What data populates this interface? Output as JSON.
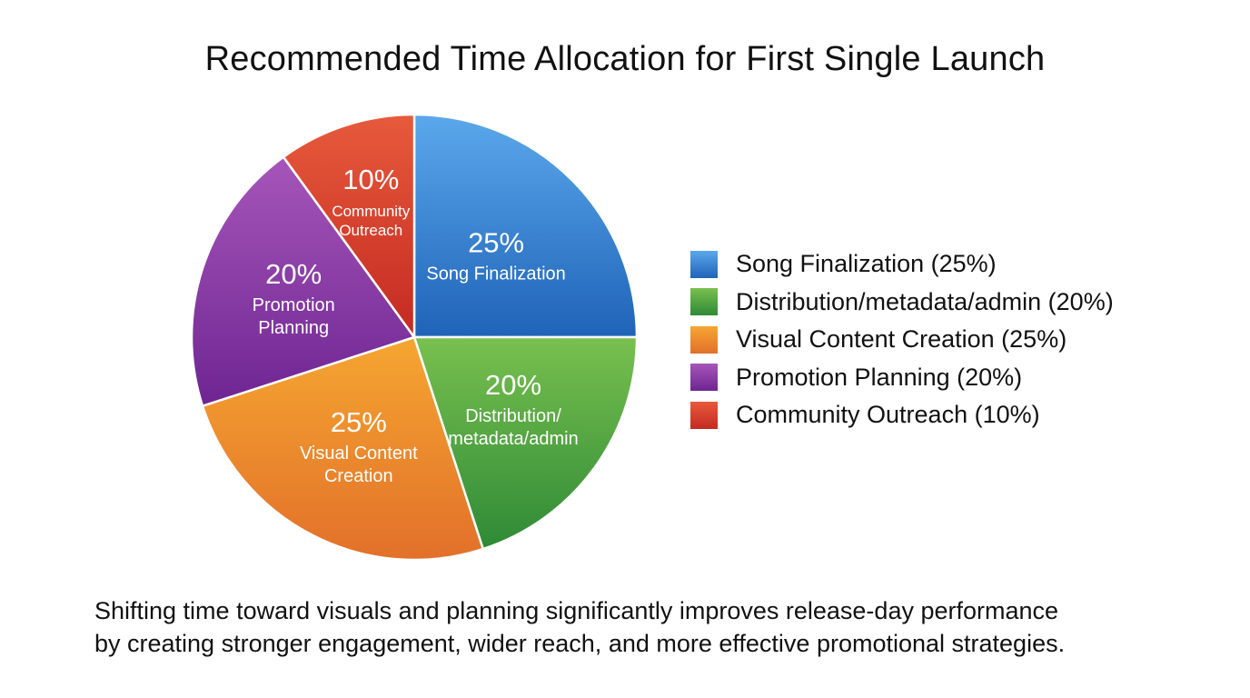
{
  "chart_data": {
    "type": "pie",
    "title": "Recommended Time Allocation for First Single Launch",
    "slices": [
      {
        "name": "Song Finalization",
        "value": 25,
        "pct_label": "25%",
        "label_lines": [
          "Song Finalization"
        ],
        "color": "#2f7fd3",
        "color_light": "#5ba8ec",
        "color_dark": "#1f63b8"
      },
      {
        "name": "Distribution/metadata/admin",
        "value": 20,
        "pct_label": "20%",
        "label_lines": [
          "Distribution/",
          "metadata/admin"
        ],
        "color": "#47a33c",
        "color_light": "#79c04f",
        "color_dark": "#2e8a36"
      },
      {
        "name": "Visual Content Creation",
        "value": 25,
        "pct_label": "25%",
        "label_lines": [
          "Visual Content",
          "Creation"
        ],
        "color": "#ef8a23",
        "color_light": "#f5a631",
        "color_dark": "#e2702a"
      },
      {
        "name": "Promotion Planning",
        "value": 20,
        "pct_label": "20%",
        "label_lines": [
          "Promotion",
          "Planning"
        ],
        "color": "#8a36a6",
        "color_light": "#a656b9",
        "color_dark": "#6e2592"
      },
      {
        "name": "Community Outreach",
        "value": 10,
        "pct_label": "10%",
        "label_lines": [
          "Community",
          "Outreach"
        ],
        "color": "#d53a2c",
        "color_light": "#e75a3b",
        "color_dark": "#c42a22"
      }
    ],
    "legend": [
      "Song Finalization (25%)",
      "Distribution/metadata/admin (20%)",
      "Visual Content Creation (25%)",
      "Promotion Planning (20%)",
      "Community Outreach (10%)"
    ],
    "legend_position": "right"
  },
  "caption": {
    "line1": "Shifting time toward visuals and planning significantly improves release-day performance",
    "line2": "by creating stronger engagement, wider reach, and more effective promotional strategies."
  }
}
